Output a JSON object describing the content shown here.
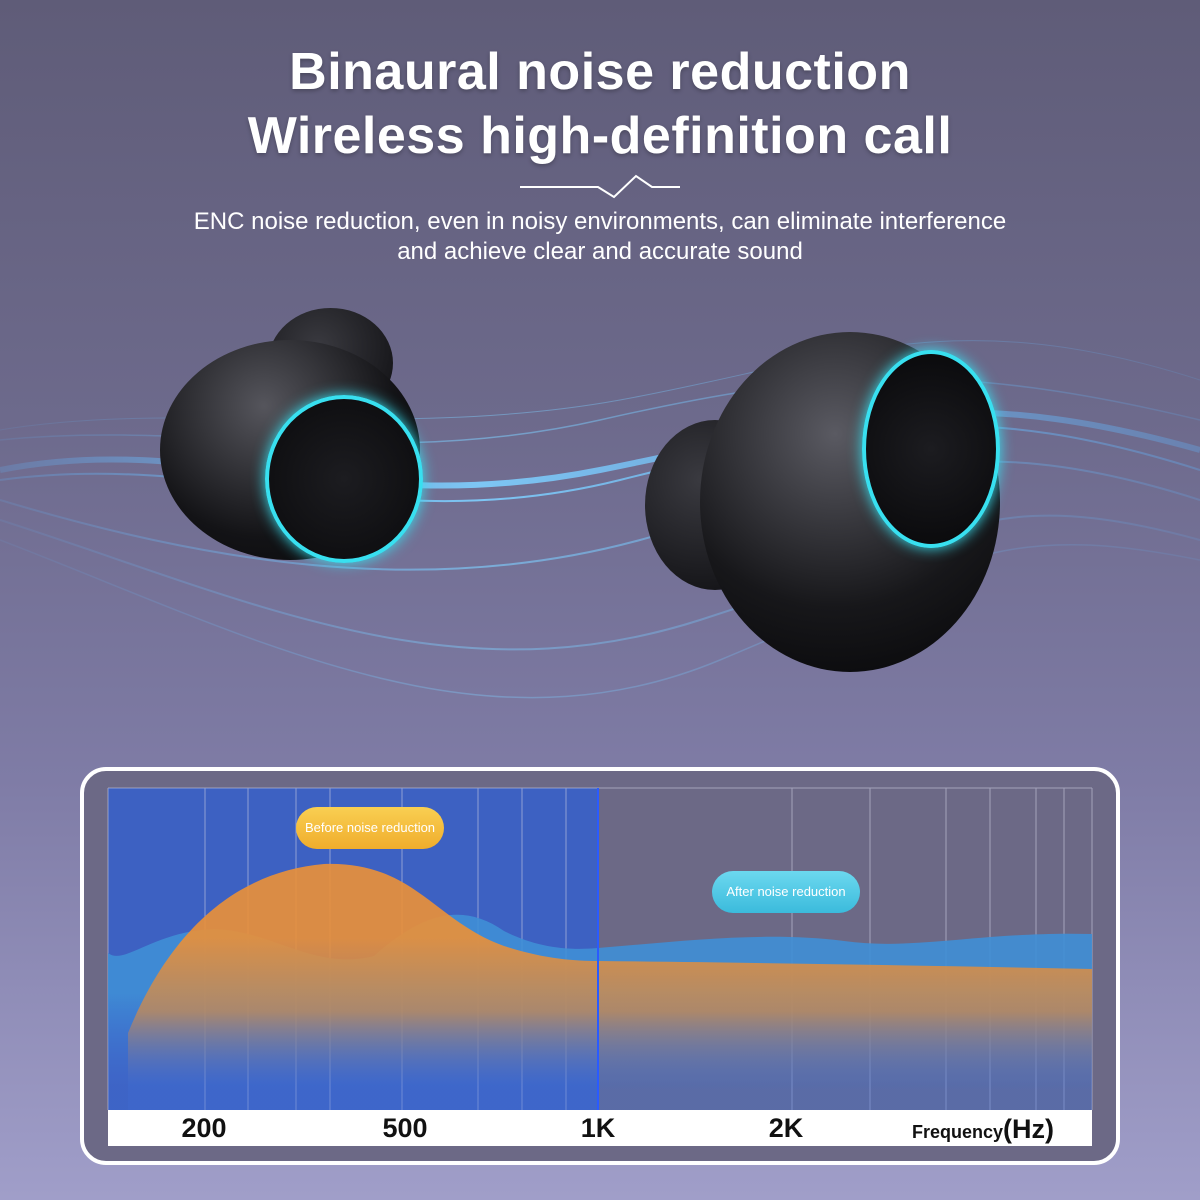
{
  "header": {
    "title_line1": "Binaural noise reduction",
    "title_line2": "Wireless high-definition call",
    "subtitle_line1": "ENC noise reduction, even in noisy environments, can eliminate interference",
    "subtitle_line2": "and achieve clear and accurate sound"
  },
  "chart": {
    "before_label": "Before noise reduction",
    "after_label": "After noise reduction",
    "ticks": [
      "200",
      "500",
      "1K",
      "2K"
    ],
    "axis_label": "Frequency",
    "axis_unit": "(Hz)"
  },
  "colors": {
    "before": "#e8903a",
    "after": "#3f8fd6",
    "highlight": "#2d5fd6",
    "accent_ring": "#38e0f0"
  }
}
